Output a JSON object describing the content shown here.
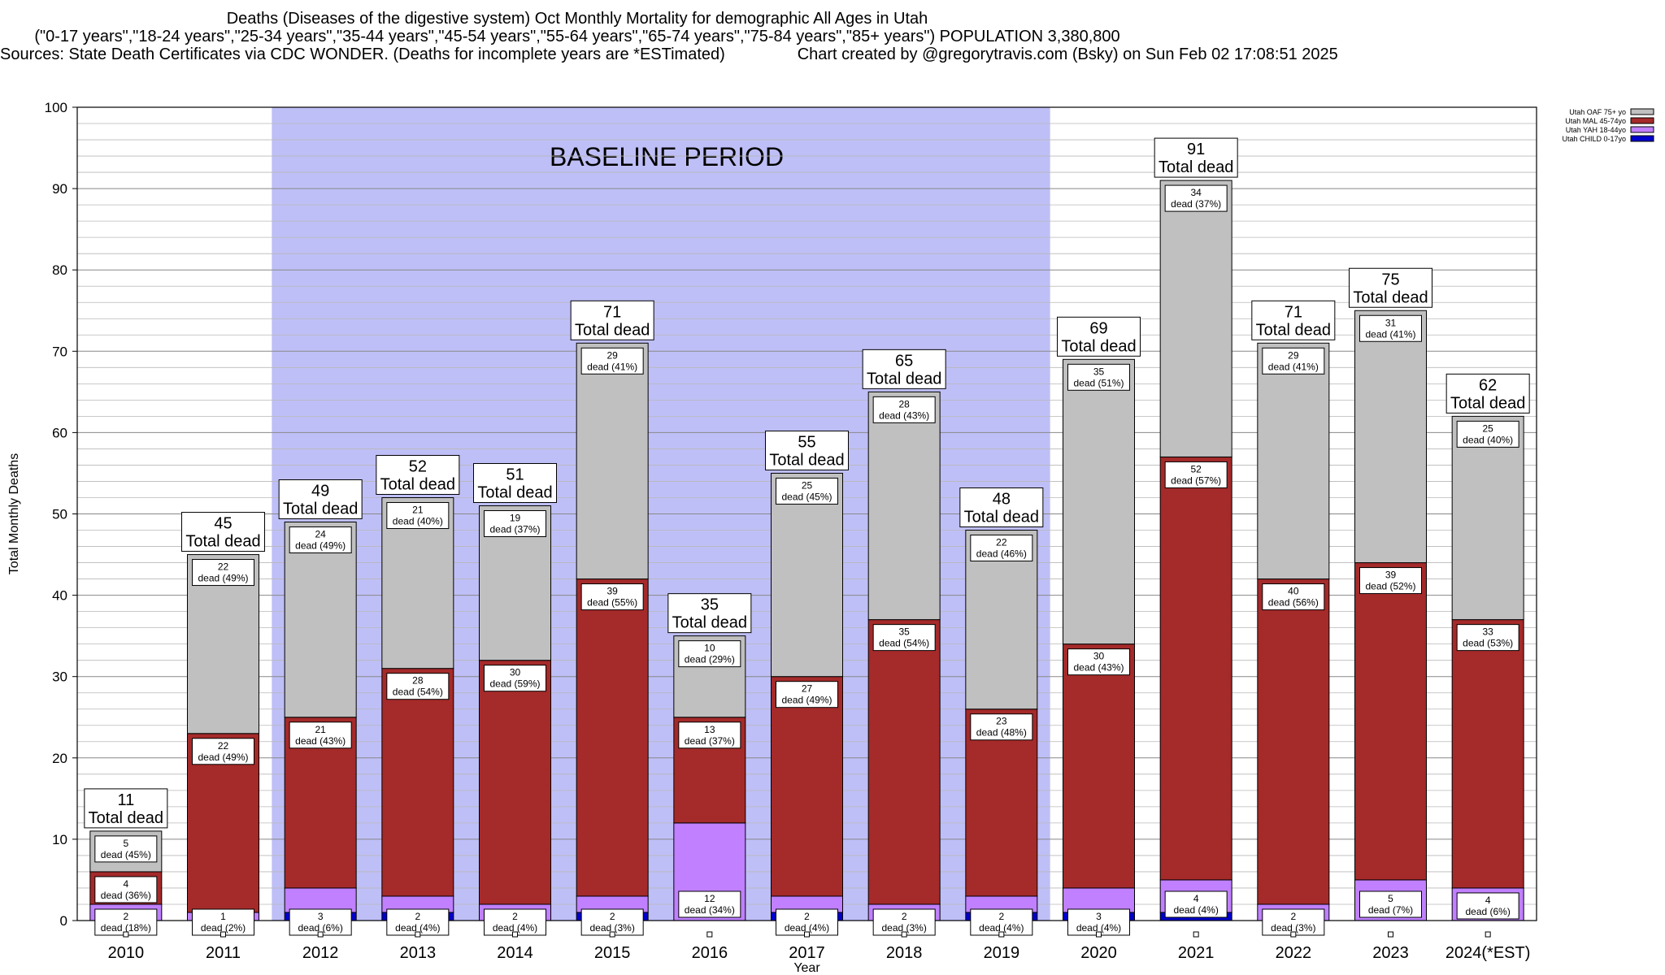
{
  "titles": {
    "line1": "Deaths (Diseases of the digestive system) Oct Monthly Mortality for demographic All Ages in Utah",
    "line2": "(\"0-17 years\",\"18-24 years\",\"25-34 years\",\"35-44 years\",\"45-54 years\",\"55-64 years\",\"65-74 years\",\"75-84 years\",\"85+ years\") POPULATION 3,380,800",
    "line3": "Sources: State Death Certificates via CDC WONDER. (Deaths for incomplete years are *ESTimated)                Chart created by @gregorytravis.com (Bsky) on Sun Feb 02 17:08:51 2025"
  },
  "chart_data": {
    "type": "bar",
    "stacked": true,
    "xlabel": "Year",
    "ylabel": "Total Monthly Deaths",
    "ylim": [
      0,
      100
    ],
    "yticks": [
      0,
      10,
      20,
      30,
      40,
      50,
      60,
      70,
      80,
      90,
      100
    ],
    "categories": [
      "2010",
      "2011",
      "2012",
      "2013",
      "2014",
      "2015",
      "2016",
      "2017",
      "2018",
      "2019",
      "2020",
      "2021",
      "2022",
      "2023",
      "2024(*EST)"
    ],
    "series": [
      {
        "name": "Utah CHILD 0-17yo",
        "color": "#0000cc",
        "values": [
          0,
          0,
          1,
          1,
          0,
          1,
          0,
          1,
          0,
          1,
          1,
          1,
          0,
          0,
          0
        ]
      },
      {
        "name": "Utah YAH 18-44yo",
        "color": "#c080ff",
        "values": [
          2,
          1,
          3,
          2,
          2,
          2,
          12,
          2,
          2,
          2,
          3,
          4,
          2,
          5,
          4
        ]
      },
      {
        "name": "Utah MAL 45-74yo",
        "color": "#a52a2a",
        "values": [
          4,
          22,
          21,
          28,
          30,
          39,
          13,
          27,
          35,
          23,
          30,
          52,
          40,
          39,
          33
        ]
      },
      {
        "name": "Utah OAF 75+ yo",
        "color": "#c0c0c0",
        "values": [
          5,
          22,
          24,
          21,
          19,
          29,
          10,
          25,
          28,
          22,
          35,
          34,
          29,
          31,
          25
        ]
      }
    ],
    "segment_labels": {
      "yah": [
        "2\ndead (18%)",
        "1\ndead (2%)",
        "3\ndead (6%)",
        "2\ndead (4%)",
        "2\ndead (4%)",
        "2\ndead (3%)",
        "12\ndead (34%)",
        "2\ndead (4%)",
        "2\ndead (3%)",
        "2\ndead (4%)",
        "3\ndead (4%)",
        "4\ndead (4%)",
        "2\ndead (3%)",
        "5\ndead (7%)",
        "4\ndead (6%)"
      ],
      "mal": [
        "4\ndead (36%)",
        "22\ndead (49%)",
        "21\ndead (43%)",
        "28\ndead (54%)",
        "30\ndead (59%)",
        "39\ndead (55%)",
        "13\ndead (37%)",
        "27\ndead (49%)",
        "35\ndead (54%)",
        "23\ndead (48%)",
        "30\ndead (43%)",
        "52\ndead (57%)",
        "40\ndead (56%)",
        "39\ndead (52%)",
        "33\ndead (53%)"
      ],
      "oaf": [
        "5\ndead (45%)",
        "22\ndead (49%)",
        "24\ndead (49%)",
        "21\ndead (40%)",
        "19\ndead (37%)",
        "29\ndead (41%)",
        "10\ndead (29%)",
        "25\ndead (45%)",
        "28\ndead (43%)",
        "22\ndead (46%)",
        "35\ndead (51%)",
        "34\ndead (37%)",
        "29\ndead (41%)",
        "31\ndead (41%)",
        "25\ndead (40%)"
      ]
    },
    "totals": [
      11,
      45,
      49,
      52,
      51,
      71,
      35,
      55,
      65,
      48,
      69,
      91,
      71,
      75,
      62
    ],
    "total_suffix": "Total dead",
    "baseline": {
      "label": "BASELINE PERIOD",
      "from": "2012",
      "to": "2019",
      "color": "#bfbff7"
    },
    "legend_position": "top-right",
    "grid": true
  }
}
